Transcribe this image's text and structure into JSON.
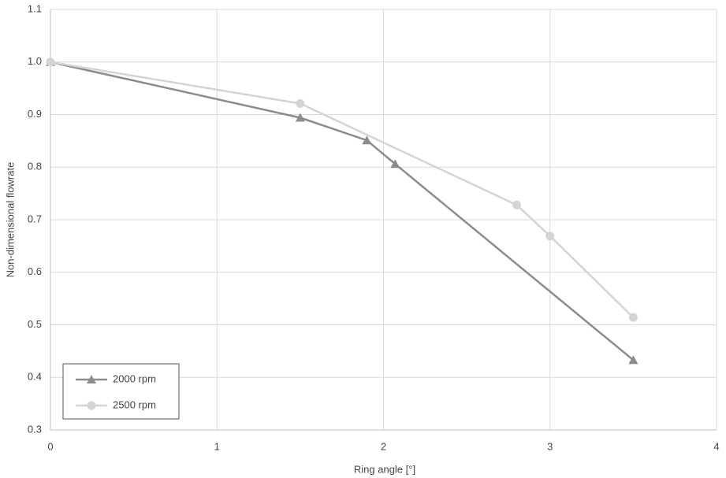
{
  "chart_data": {
    "type": "line",
    "x_label": "Ring angle [°]",
    "y_label": "Non-dimensional flowrate",
    "series": [
      {
        "name": "2000 rpm",
        "color": "#8c8c8c",
        "marker": "triangle",
        "x": [
          0,
          1.5,
          1.9,
          2.07,
          3.5
        ],
        "values": [
          1.0,
          0.894,
          0.851,
          0.806,
          0.433
        ]
      },
      {
        "name": "2500 rpm",
        "color": "#d4d4d4",
        "marker": "circle",
        "x": [
          0,
          1.5,
          2.8,
          3.0,
          3.5
        ],
        "values": [
          1.0,
          0.921,
          0.728,
          0.669,
          0.514
        ]
      }
    ],
    "xlim": [
      0,
      4
    ],
    "xticks": [
      0,
      1,
      2,
      3,
      4
    ],
    "ylim": [
      0.3,
      1.1
    ],
    "yticks": [
      0.3,
      0.4,
      0.5,
      0.6,
      0.7,
      0.8,
      0.9,
      {
        "value": 1.0,
        "label": "1.0"
      },
      1.1
    ],
    "grid": true,
    "legend": "lower left"
  }
}
